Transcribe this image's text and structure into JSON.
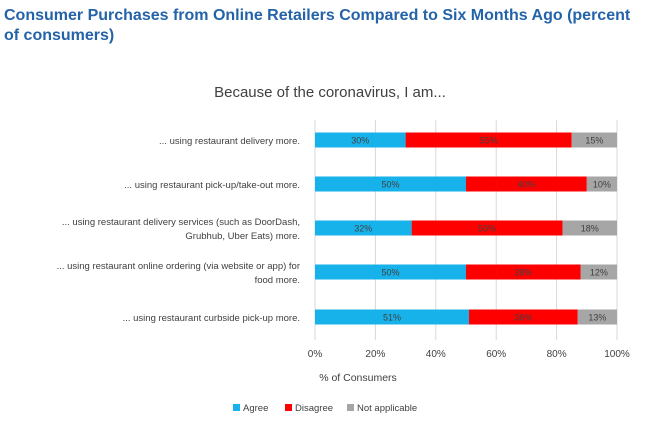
{
  "header": {
    "title": "Consumer Purchases from Online Retailers Compared to Six Months Ago (percent of consumers)"
  },
  "colors": {
    "title": "#2563a8",
    "agree": "#18b2ea",
    "disagree": "#ff0000",
    "not_applicable": "#a6a6a6"
  },
  "chart_data": {
    "type": "bar",
    "orientation": "horizontal",
    "stacked": "percent",
    "title": "Because of the coronavirus, I am...",
    "xlabel": "% of Consumers",
    "ylabel": "",
    "xlim": [
      0,
      100
    ],
    "x_ticks": [
      "0%",
      "20%",
      "40%",
      "60%",
      "80%",
      "100%"
    ],
    "grid": "vertical",
    "legend_position": "bottom",
    "categories": [
      "... using restaurant delivery more.",
      "... using restaurant pick-up/take-out more.",
      "... using restaurant delivery services (such as DoorDash, Grubhub, Uber Eats) more.",
      "... using restaurant online ordering (via website or app) for food more.",
      "... using restaurant curbside pick-up more."
    ],
    "category_lines": [
      [
        "... using restaurant delivery more."
      ],
      [
        "... using restaurant pick-up/take-out more."
      ],
      [
        "... using restaurant delivery services (such as DoorDash,",
        "Grubhub, Uber Eats) more."
      ],
      [
        "... using restaurant online ordering (via website or app) for",
        "food more."
      ],
      [
        "... using restaurant curbside pick-up more."
      ]
    ],
    "series": [
      {
        "name": "Agree",
        "values": [
          30,
          50,
          32,
          50,
          51
        ],
        "labels": [
          "30%",
          "50%",
          "32%",
          "50%",
          "51%"
        ]
      },
      {
        "name": "Disagree",
        "values": [
          55,
          40,
          50,
          38,
          36
        ],
        "labels": [
          "55%",
          "40%",
          "50%",
          "38%",
          "36%"
        ]
      },
      {
        "name": "Not applicable",
        "values": [
          15,
          10,
          18,
          12,
          13
        ],
        "labels": [
          "15%",
          "10%",
          "18%",
          "12%",
          "13%"
        ]
      }
    ]
  }
}
